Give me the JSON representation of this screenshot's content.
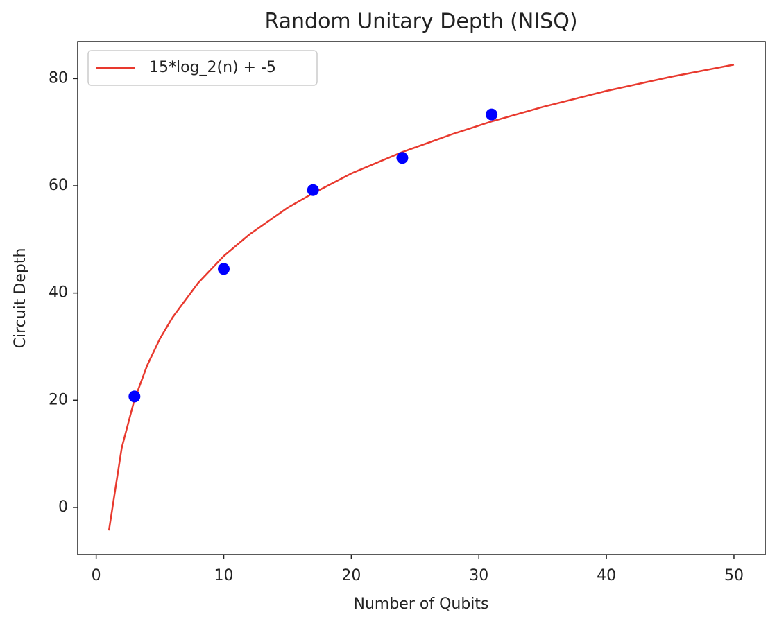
{
  "chart_data": {
    "type": "scatter",
    "title": "Random Unitary Depth (NISQ)",
    "x_label": "Number of Qubits",
    "y_label": "Circuit Depth",
    "series": [
      {
        "name": "15*log_2(n) + -5",
        "type": "line",
        "color": "#e8392e",
        "x": [
          1,
          2,
          3,
          4,
          5,
          6,
          8,
          10,
          12,
          15,
          17,
          20,
          24,
          28,
          31,
          35,
          40,
          45,
          50
        ],
        "values": [
          -4.3,
          11.1,
          20.1,
          26.5,
          31.5,
          35.5,
          41.9,
          46.9,
          50.9,
          55.9,
          58.6,
          62.3,
          66.3,
          69.7,
          72.0,
          74.7,
          77.7,
          80.3,
          82.6
        ]
      },
      {
        "type": "scatter",
        "color": "#0000ff",
        "x": [
          3,
          10,
          17,
          24,
          31
        ],
        "values": [
          20.7,
          44.5,
          59.2,
          65.2,
          73.3
        ]
      }
    ],
    "xlim": [
      -1.45,
      52.45
    ],
    "ylim": [
      -8.8,
      86.9
    ],
    "xticks": [
      0,
      10,
      20,
      30,
      40,
      50
    ],
    "yticks": [
      0,
      20,
      40,
      60,
      80
    ],
    "grid": false,
    "legend": "upper left"
  }
}
